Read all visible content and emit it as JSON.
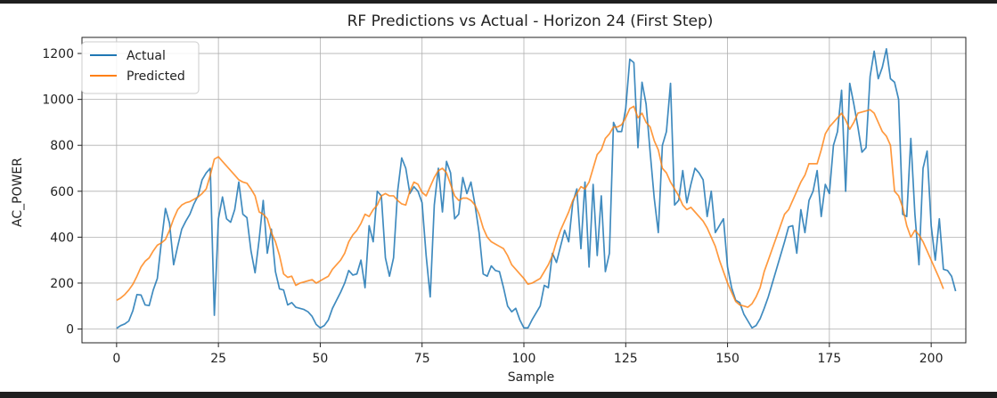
{
  "chart_data": {
    "type": "line",
    "title": "RF Predictions vs Actual - Horizon 24 (First Step)",
    "xlabel": "Sample",
    "ylabel": "AC_POWER",
    "xlim": [
      -8.5,
      208.5
    ],
    "ylim": [
      -60,
      1270
    ],
    "xticks": [
      0,
      25,
      50,
      75,
      100,
      125,
      150,
      175,
      200
    ],
    "yticks": [
      0,
      200,
      400,
      600,
      800,
      1000,
      1200
    ],
    "grid": true,
    "legend_position": "top-left",
    "series": [
      {
        "name": "Actual",
        "color": "#1f77b4",
        "values": [
          3,
          15,
          22,
          35,
          80,
          150,
          148,
          105,
          102,
          170,
          220,
          380,
          525,
          460,
          280,
          360,
          435,
          470,
          500,
          545,
          580,
          650,
          680,
          700,
          60,
          480,
          575,
          480,
          465,
          520,
          640,
          500,
          485,
          340,
          245,
          390,
          560,
          330,
          435,
          250,
          175,
          170,
          105,
          115,
          95,
          90,
          85,
          75,
          55,
          20,
          5,
          15,
          40,
          90,
          125,
          160,
          200,
          255,
          235,
          240,
          300,
          180,
          450,
          380,
          600,
          580,
          310,
          230,
          310,
          600,
          745,
          700,
          590,
          620,
          600,
          550,
          320,
          140,
          540,
          700,
          510,
          730,
          680,
          480,
          500,
          660,
          590,
          640,
          540,
          420,
          240,
          230,
          275,
          255,
          250,
          180,
          100,
          75,
          90,
          40,
          5,
          5,
          40,
          70,
          100,
          190,
          180,
          330,
          290,
          360,
          430,
          380,
          550,
          610,
          350,
          640,
          270,
          630,
          320,
          580,
          250,
          330,
          900,
          860,
          860,
          960,
          1175,
          1160,
          790,
          1075,
          980,
          770,
          570,
          420,
          800,
          860,
          1070,
          540,
          560,
          690,
          550,
          630,
          700,
          680,
          650,
          490,
          600,
          420,
          450,
          480,
          270,
          180,
          125,
          115,
          65,
          35,
          5,
          15,
          45,
          90,
          140,
          200,
          260,
          320,
          380,
          445,
          450,
          330,
          520,
          420,
          560,
          600,
          690,
          490,
          630,
          590,
          800,
          860,
          1040,
          600,
          1070,
          980,
          880,
          770,
          790,
          1100,
          1210,
          1090,
          1140,
          1220,
          1090,
          1075,
          1000,
          500,
          490,
          830,
          500,
          280,
          700,
          775,
          450,
          300,
          480,
          260,
          255,
          230,
          165
        ]
      },
      {
        "name": "Predicted",
        "color": "#ff7f0e",
        "values": [
          125,
          135,
          150,
          170,
          195,
          230,
          270,
          295,
          310,
          340,
          365,
          375,
          390,
          430,
          480,
          520,
          540,
          550,
          555,
          565,
          575,
          590,
          610,
          670,
          740,
          750,
          730,
          710,
          690,
          670,
          650,
          640,
          635,
          610,
          580,
          510,
          500,
          480,
          420,
          380,
          320,
          240,
          225,
          230,
          190,
          200,
          205,
          210,
          215,
          200,
          210,
          220,
          230,
          260,
          280,
          300,
          330,
          380,
          410,
          430,
          460,
          500,
          490,
          520,
          540,
          580,
          590,
          580,
          580,
          560,
          545,
          540,
          600,
          640,
          630,
          595,
          580,
          620,
          660,
          690,
          700,
          680,
          630,
          580,
          560,
          570,
          570,
          560,
          540,
          500,
          440,
          400,
          380,
          370,
          360,
          350,
          320,
          280,
          260,
          240,
          220,
          195,
          200,
          210,
          220,
          250,
          280,
          320,
          380,
          430,
          470,
          510,
          560,
          590,
          620,
          610,
          640,
          700,
          760,
          780,
          830,
          850,
          880,
          880,
          890,
          920,
          960,
          970,
          920,
          940,
          900,
          880,
          820,
          780,
          700,
          680,
          640,
          610,
          580,
          540,
          520,
          530,
          510,
          490,
          470,
          440,
          400,
          360,
          300,
          250,
          200,
          160,
          120,
          105,
          100,
          95,
          110,
          140,
          180,
          250,
          300,
          350,
          400,
          450,
          500,
          520,
          560,
          600,
          640,
          670,
          720,
          720,
          720,
          780,
          850,
          880,
          900,
          920,
          940,
          910,
          870,
          900,
          940,
          945,
          950,
          955,
          940,
          900,
          860,
          840,
          800,
          600,
          580,
          530,
          450,
          400,
          430,
          410,
          380,
          340,
          300,
          260,
          220,
          175
        ]
      }
    ]
  }
}
